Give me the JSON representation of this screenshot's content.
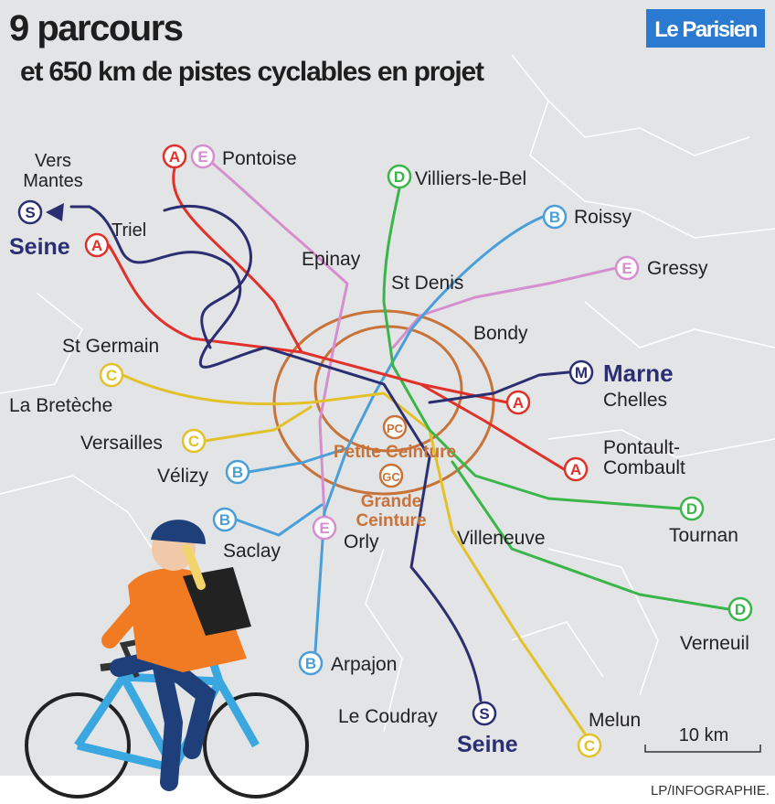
{
  "header": {
    "title": "9 parcours",
    "subtitle": "et 650 km de pistes cyclables en projet",
    "logo": "Le Parisien"
  },
  "labels": [
    {
      "lines": [
        "Vers",
        "Mantes"
      ]
    },
    {
      "lines": [
        "Seine"
      ]
    },
    {
      "lines": [
        "Triel"
      ]
    },
    {
      "lines": [
        "Pontoise"
      ]
    },
    {
      "lines": [
        "Villiers-le-Bel"
      ]
    },
    {
      "lines": [
        "Roissy"
      ]
    },
    {
      "lines": [
        "Epinay"
      ]
    },
    {
      "lines": [
        "St Denis"
      ]
    },
    {
      "lines": [
        "Gressy"
      ]
    },
    {
      "lines": [
        "Bondy"
      ]
    },
    {
      "lines": [
        "St Germain"
      ]
    },
    {
      "lines": [
        "Marne"
      ]
    },
    {
      "lines": [
        "Chelles"
      ]
    },
    {
      "lines": [
        "La Bretèche"
      ]
    },
    {
      "lines": [
        "Versailles"
      ]
    },
    {
      "lines": [
        "Pontault-",
        "Combault"
      ]
    },
    {
      "lines": [
        "Petite Ceinture"
      ]
    },
    {
      "lines": [
        "Vélizy"
      ]
    },
    {
      "lines": [
        "Grande",
        "Ceinture"
      ]
    },
    {
      "lines": [
        "Tournan"
      ]
    },
    {
      "lines": [
        "Saclay"
      ]
    },
    {
      "lines": [
        "Orly"
      ]
    },
    {
      "lines": [
        "Villeneuve"
      ]
    },
    {
      "lines": [
        "Verneuil"
      ]
    },
    {
      "lines": [
        "Arpajon"
      ]
    },
    {
      "lines": [
        "Le Coudray"
      ]
    },
    {
      "lines": [
        "Melun"
      ]
    },
    {
      "lines": [
        "Seine"
      ]
    }
  ],
  "badges": [
    {
      "letter": "A",
      "color": "#e0312b"
    },
    {
      "letter": "E",
      "color": "#d58fcf"
    },
    {
      "letter": "D",
      "color": "#3ab54a"
    },
    {
      "letter": "B",
      "color": "#4a9fd8"
    },
    {
      "letter": "S",
      "color": "#2b2f72"
    },
    {
      "letter": "A",
      "color": "#e0312b"
    },
    {
      "letter": "E",
      "color": "#d58fcf"
    },
    {
      "letter": "C",
      "color": "#e3c12a"
    },
    {
      "letter": "M",
      "color": "#2b2f72"
    },
    {
      "letter": "A",
      "color": "#e0312b"
    },
    {
      "letter": "C",
      "color": "#e3c12a"
    },
    {
      "letter": "A",
      "color": "#e0312b"
    },
    {
      "letter": "B",
      "color": "#4a9fd8"
    },
    {
      "letter": "PC",
      "color": "#c8733a"
    },
    {
      "letter": "GC",
      "color": "#c8733a"
    },
    {
      "letter": "D",
      "color": "#3ab54a"
    },
    {
      "letter": "B",
      "color": "#4a9fd8"
    },
    {
      "letter": "E",
      "color": "#d58fcf"
    },
    {
      "letter": "D",
      "color": "#3ab54a"
    },
    {
      "letter": "B",
      "color": "#4a9fd8"
    },
    {
      "letter": "S",
      "color": "#2b2f72"
    },
    {
      "letter": "C",
      "color": "#e3c12a"
    }
  ],
  "scale": "10 km",
  "credit": "LP/INFOGRAPHIE."
}
